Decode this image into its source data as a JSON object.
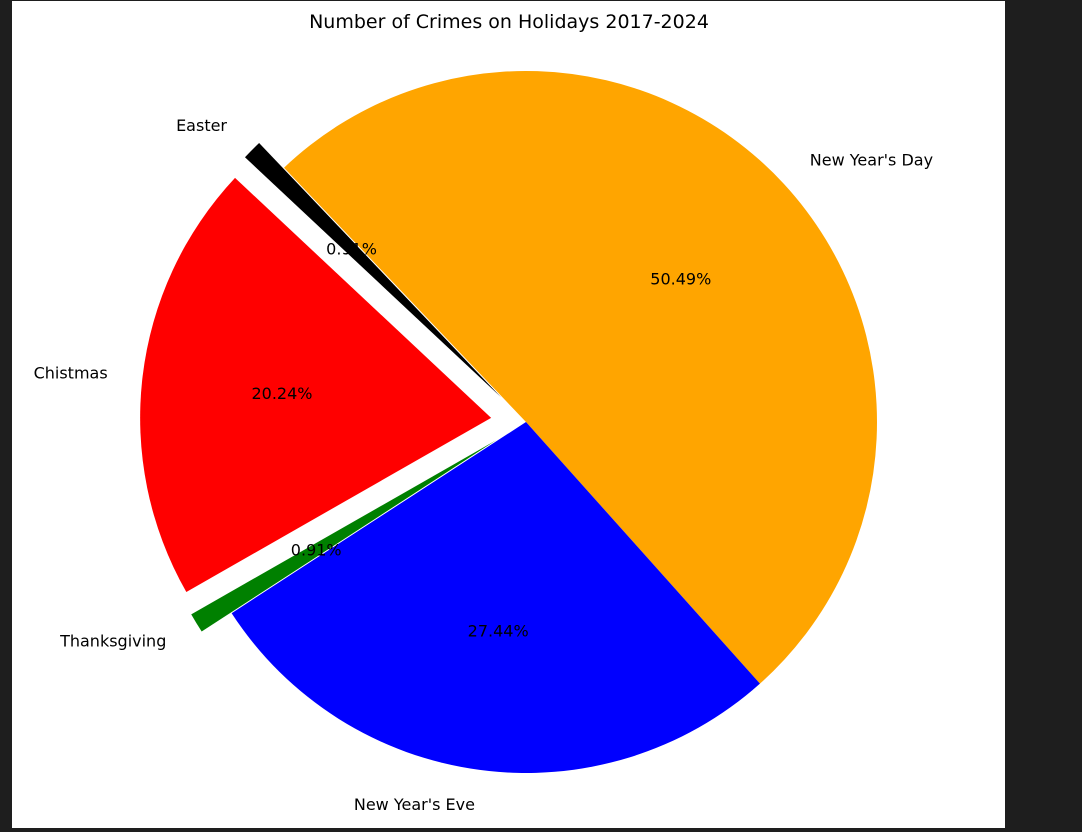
{
  "chart_data": {
    "type": "pie",
    "title": "Number of Crimes on Holidays 2017-2024",
    "slices": [
      {
        "label": "New Year's Day",
        "value": 50.49,
        "pct_label": "50.49%",
        "color": "#ffa500",
        "explode": 0
      },
      {
        "label": "Easter",
        "value": 0.91,
        "pct_label": "0.91%",
        "color": "#000000",
        "explode": 0.1
      },
      {
        "label": "Chistmas",
        "value": 20.24,
        "pct_label": "20.24%",
        "color": "#ff0000",
        "explode": 0.1
      },
      {
        "label": "Thanksgiving",
        "value": 0.91,
        "pct_label": "0.91%",
        "color": "#008000",
        "explode": 0.1
      },
      {
        "label": "New Year's Eve",
        "value": 27.44,
        "pct_label": "27.44%",
        "color": "#0000ff",
        "explode": 0
      }
    ],
    "start_angle_deg": -48.2,
    "direction": "counterclockwise",
    "legend": "none",
    "grid": false
  },
  "colors": {
    "window_background": "#1e1e1e",
    "figure_background": "#ffffff"
  }
}
